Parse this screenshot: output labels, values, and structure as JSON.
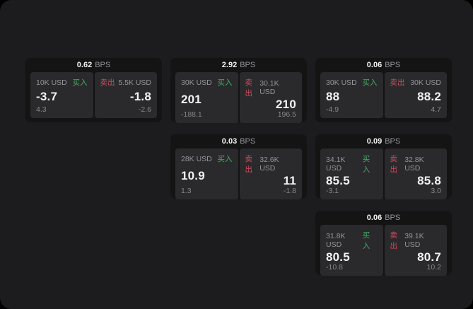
{
  "labels": {
    "bps_unit": "BPS",
    "buy": "买入",
    "sell": "卖出"
  },
  "colors": {
    "buy": "#3fb164",
    "sell": "#cf4b5f",
    "card_bg": "#141415",
    "panel_bg": "#2a2a2c",
    "surface": "#1c1c1e",
    "text_primary": "#f2f2f2",
    "text_muted": "#95959a"
  },
  "cards": [
    {
      "bps": "0.62",
      "buy": {
        "amount": "10K USD",
        "main": "-3.7",
        "sub": "4.3"
      },
      "sell": {
        "amount": "5.5K USD",
        "main": "-1.8",
        "sub": "-2.6"
      }
    },
    {
      "bps": "2.92",
      "buy": {
        "amount": "30K USD",
        "main": "201",
        "sub": "-188.1"
      },
      "sell": {
        "amount": "30.1K USD",
        "main": "210",
        "sub": "196.5"
      }
    },
    {
      "bps": "0.06",
      "buy": {
        "amount": "30K USD",
        "main": "88",
        "sub": "-4.9"
      },
      "sell": {
        "amount": "30K USD",
        "main": "88.2",
        "sub": "4.7"
      }
    },
    {
      "bps": "0.03",
      "buy": {
        "amount": "28K USD",
        "main": "10.9",
        "sub": "1.3"
      },
      "sell": {
        "amount": "32.6K USD",
        "main": "11",
        "sub": "-1.8"
      }
    },
    {
      "bps": "0.09",
      "buy": {
        "amount": "34.1K USD",
        "main": "85.5",
        "sub": "-3.1"
      },
      "sell": {
        "amount": "32.8K USD",
        "main": "85.8",
        "sub": "3.0"
      }
    },
    {
      "bps": "0.06",
      "buy": {
        "amount": "31.8K USD",
        "main": "80.5",
        "sub": "-10.8"
      },
      "sell": {
        "amount": "39.1K USD",
        "main": "80.7",
        "sub": "10.2"
      }
    }
  ]
}
